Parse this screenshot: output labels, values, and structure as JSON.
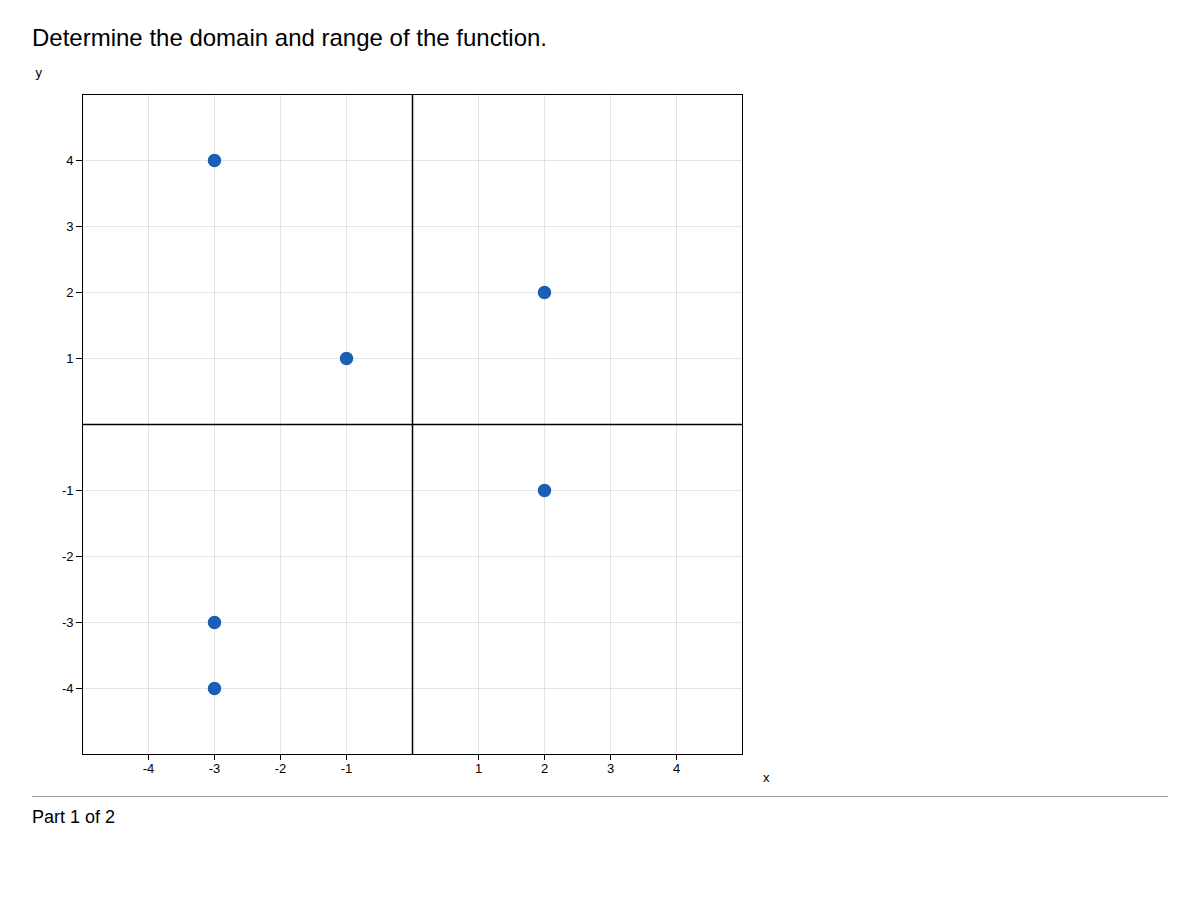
{
  "chart_data": {
    "type": "scatter",
    "title": "Determine the domain and range of the function.",
    "annotations": [
      "Part 1 of 2"
    ],
    "x": [
      -3,
      -1,
      2,
      2,
      -3,
      -3
    ],
    "values": [
      4,
      1,
      2,
      -1,
      -3,
      -4
    ],
    "color": "#1a5fb4",
    "xlabel": "x",
    "ylabel": "y",
    "xlim": [
      -5,
      5
    ],
    "ylim": [
      -5,
      5
    ],
    "xticks": [
      -4,
      -3,
      -2,
      -1,
      1,
      2,
      3,
      4
    ],
    "yticks": [
      -4,
      -3,
      -2,
      -1,
      1,
      2,
      3,
      4
    ],
    "grid": true
  }
}
